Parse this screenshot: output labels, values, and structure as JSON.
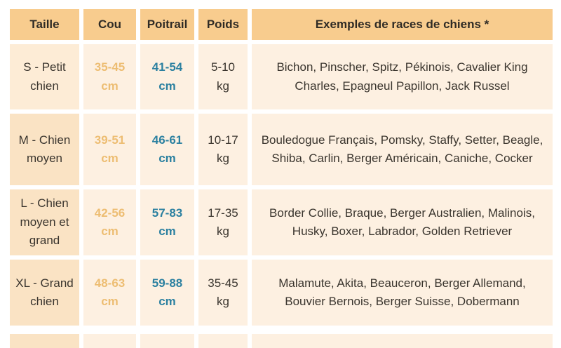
{
  "chart_data": {
    "type": "table",
    "columns": [
      "Taille",
      "Cou",
      "Poitrail",
      "Poids",
      "Exemples de races de chiens *"
    ],
    "rows": [
      {
        "taille": "S - Petit chien",
        "cou": "35-45",
        "cou_unit": "cm",
        "poitrail": "41-54",
        "poitrail_unit": "cm",
        "poids": "5-10",
        "poids_unit": "kg",
        "exemples": "Bichon, Pinscher, Spitz, Pékinois, Cavalier King Charles, Epagneul Papillon, Jack Russel"
      },
      {
        "taille": "M - Chien moyen",
        "cou": "39-51",
        "cou_unit": "cm",
        "poitrail": "46-61",
        "poitrail_unit": "cm",
        "poids": "10-17",
        "poids_unit": "kg",
        "exemples": "Bouledogue Français, Pomsky, Staffy, Setter, Beagle, Shiba, Carlin, Berger Américain, Caniche, Cocker"
      },
      {
        "taille": "L - Chien moyen et grand",
        "cou": "42-56",
        "cou_unit": "cm",
        "poitrail": "57-83",
        "poitrail_unit": "cm",
        "poids": "17-35",
        "poids_unit": "kg",
        "exemples": "Border Collie, Braque, Berger Australien, Malinois, Husky, Boxer, Labrador, Golden Retriever"
      },
      {
        "taille": "XL - Grand chien",
        "cou": "48-63",
        "cou_unit": "cm",
        "poitrail": "59-88",
        "poitrail_unit": "cm",
        "poids": "35-45",
        "poids_unit": "kg",
        "exemples": "Malamute, Akita, Beauceron, Berger Allemand, Bouvier Bernois, Berger Suisse, Dobermann"
      }
    ]
  },
  "colors": {
    "header_bg": "#f8cc8e",
    "cell_bg": "#fdf0e1",
    "taille_highlight_bg": "#fae3c4",
    "cou_accent": "#edbd72",
    "poitrail_accent": "#2b80a0",
    "text": "#3a352e",
    "background": "#ffffff"
  }
}
